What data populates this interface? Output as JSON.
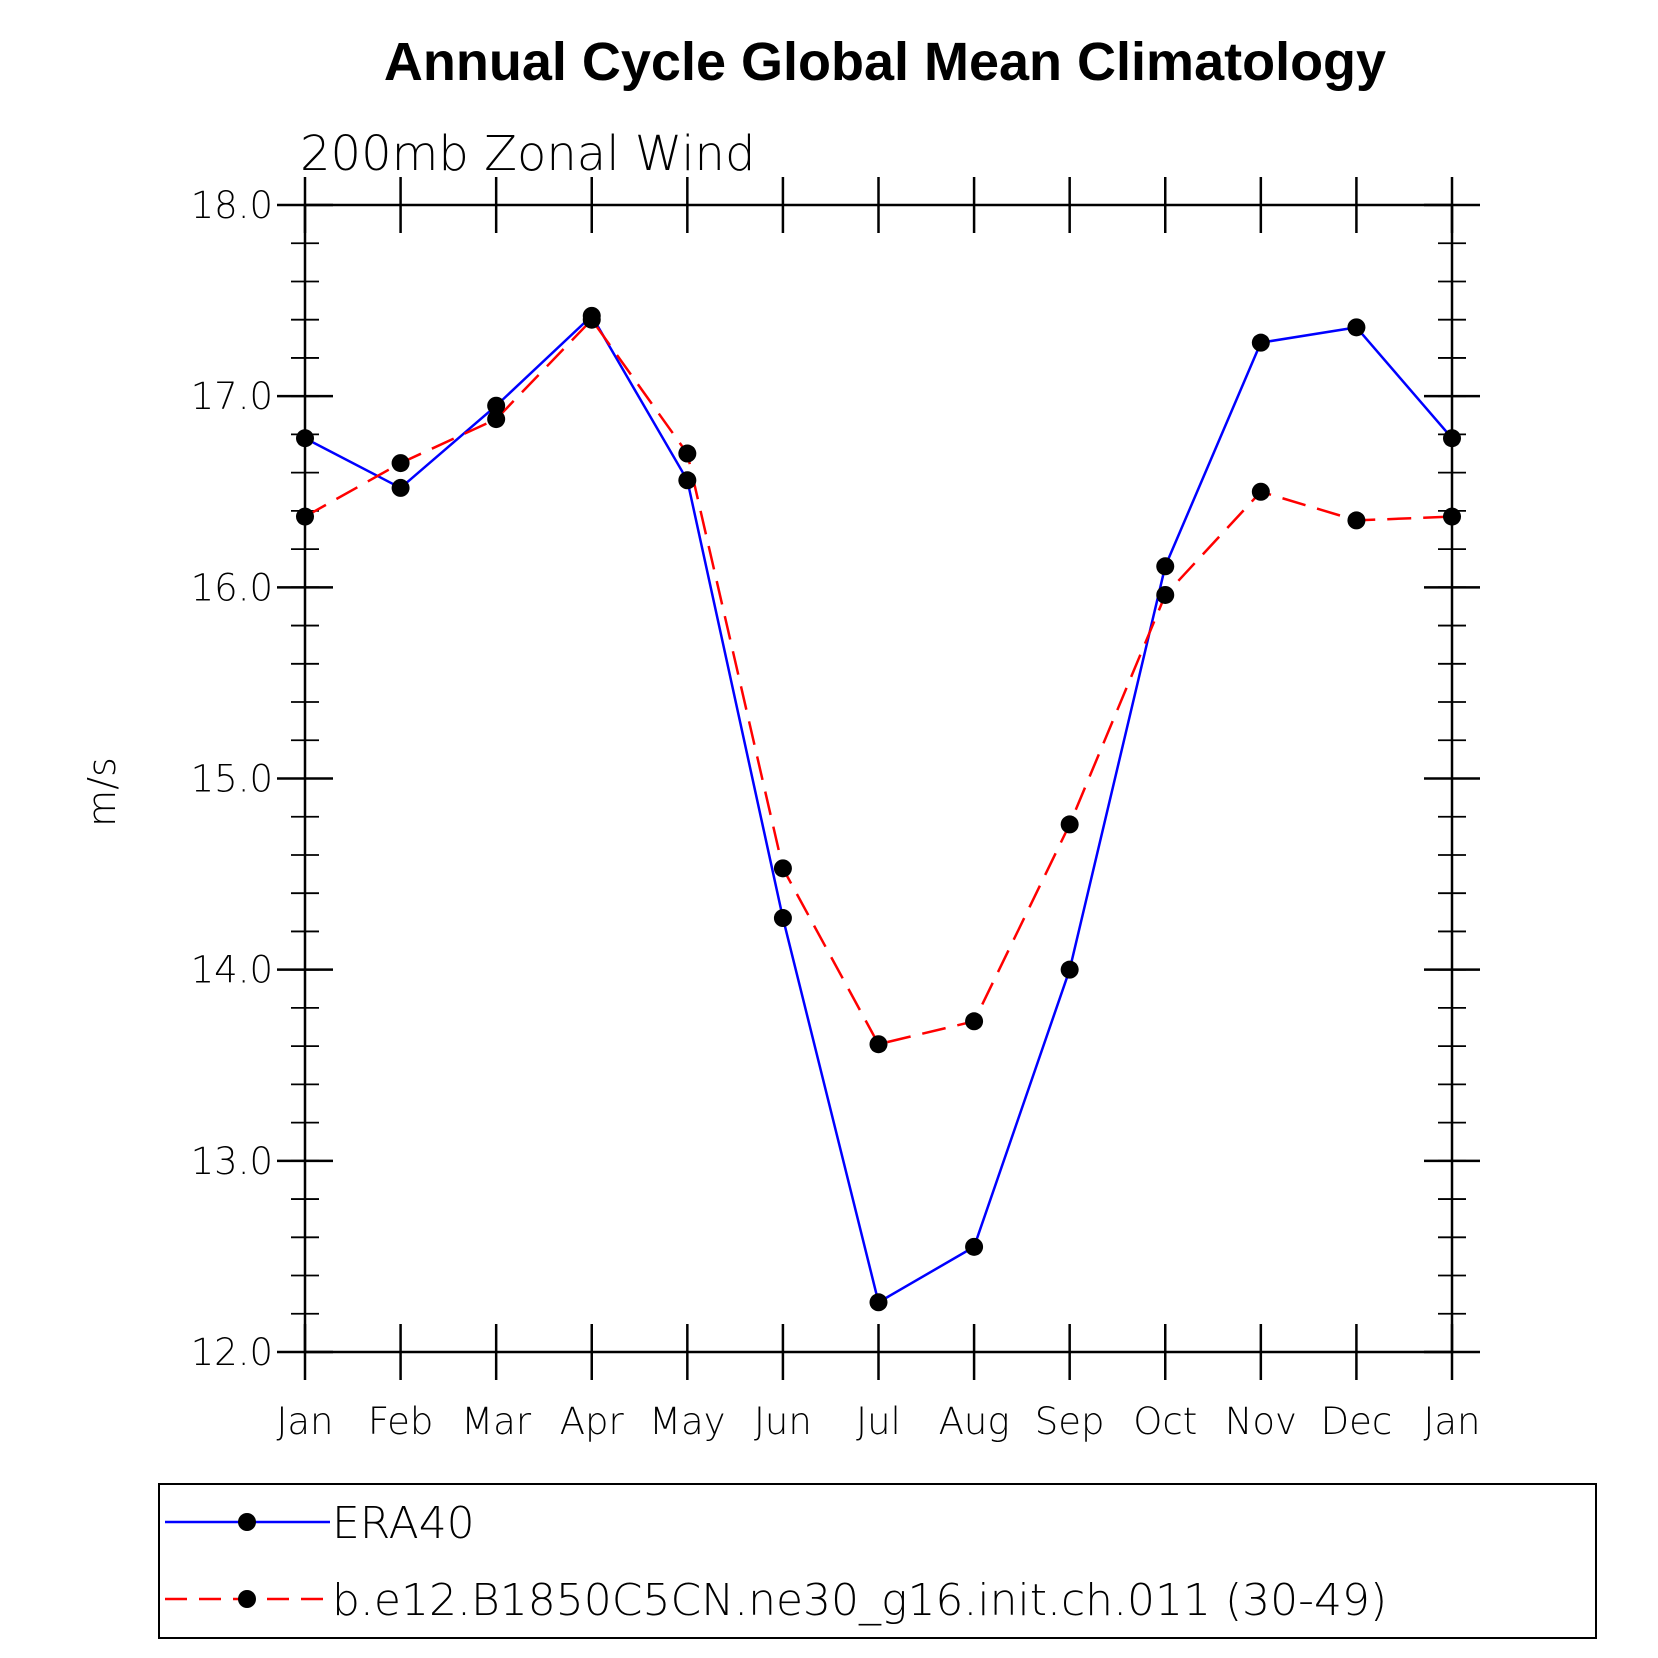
{
  "chart_data": {
    "type": "line",
    "title": "Annual Cycle Global Mean Climatology",
    "subtitle": "200mb  Zonal  Wind",
    "xlabel": "",
    "ylabel": "m/s",
    "categories": [
      "Jan",
      "Feb",
      "Mar",
      "Apr",
      "May",
      "Jun",
      "Jul",
      "Aug",
      "Sep",
      "Oct",
      "Nov",
      "Dec",
      "Jan"
    ],
    "ylim": [
      12.0,
      18.0
    ],
    "yticks": [
      "12.0",
      "13.0",
      "14.0",
      "15.0",
      "16.0",
      "17.0",
      "18.0"
    ],
    "grid": false,
    "legend_position": "bottom",
    "series": [
      {
        "name": "ERA40",
        "color": "#0000ff",
        "dash": "solid",
        "marker": "filled-circle",
        "values": [
          16.78,
          16.52,
          16.95,
          17.42,
          16.56,
          14.27,
          12.26,
          12.55,
          14.0,
          16.11,
          17.28,
          17.36,
          16.78
        ]
      },
      {
        "name": "b.e12.B1850C5CN.ne30_g16.init.ch.011 (30-49)",
        "color": "#ff0000",
        "dash": "dashed",
        "marker": "filled-circle",
        "values": [
          16.37,
          16.65,
          16.88,
          17.4,
          16.7,
          14.53,
          13.61,
          13.73,
          14.76,
          15.96,
          16.5,
          16.35,
          16.37
        ]
      }
    ]
  }
}
